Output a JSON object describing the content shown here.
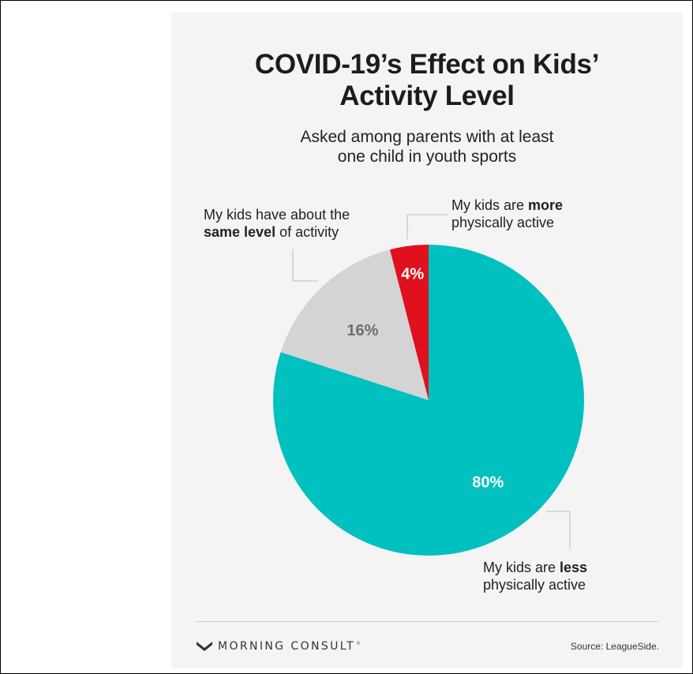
{
  "chart_data": {
    "type": "pie",
    "title": "COVID-19’s Effect on Kids’ Activity Level",
    "subtitle": "Asked among parents with at least one child in youth sports",
    "slices": [
      {
        "label": "My kids are less physically active",
        "value": 80,
        "value_label": "80%",
        "color": "#00c0c0"
      },
      {
        "label": "My kids have about the same level of activity",
        "value": 16,
        "value_label": "16%",
        "color": "#d4d4d4"
      },
      {
        "label": "My kids are more physically active",
        "value": 4,
        "value_label": "4%",
        "color": "#e0101e"
      }
    ]
  },
  "title_lines": [
    "COVID-19’s Effect on Kids’",
    "Activity Level"
  ],
  "subtitle_lines": [
    "Asked among parents with at least",
    "one child in youth sports"
  ],
  "callouts": {
    "same": {
      "line1": "My kids have about the",
      "bold": "same level",
      "rest": " of activity"
    },
    "more": {
      "line1_pre": "My kids are ",
      "bold": "more",
      "line2": "physically active"
    },
    "less": {
      "line1_pre": "My kids are ",
      "bold": "less",
      "line2": "physically active"
    }
  },
  "footer": {
    "logo_text": "MORNING CONSULT",
    "source": "Source: LeagueSide."
  },
  "colors": {
    "less": "#00c0c0",
    "same": "#d4d4d4",
    "more": "#e0101e",
    "text": "#1c1c1c",
    "label_on_gray": "#6e6e6e"
  }
}
